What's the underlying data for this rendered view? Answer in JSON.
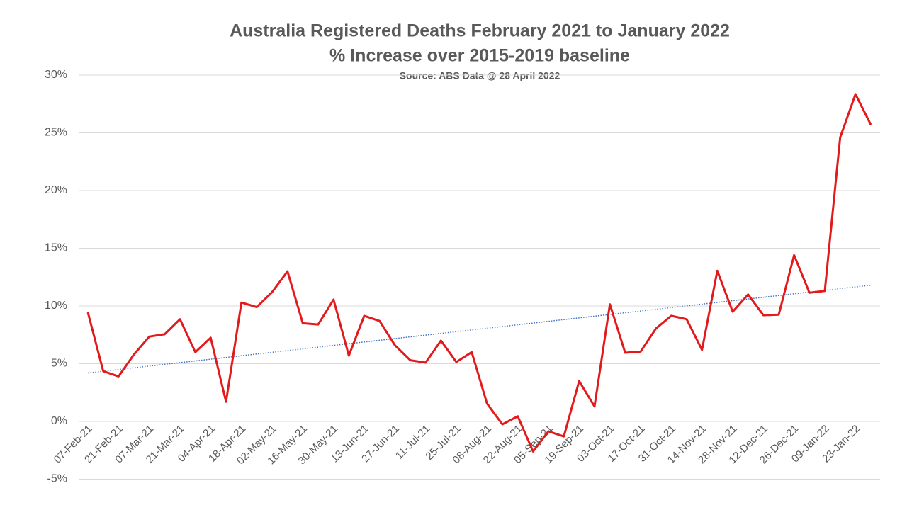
{
  "chart_data": {
    "type": "line",
    "title": "Australia Registered Deaths February 2021 to January 2022",
    "subtitle": "% Increase over 2015-2019 baseline",
    "source": "Source: ABS Data @ 28 April 2022",
    "categories": [
      "07-Feb-21",
      null,
      "21-Feb-21",
      null,
      "07-Mar-21",
      null,
      "21-Mar-21",
      null,
      "04-Apr-21",
      null,
      "18-Apr-21",
      null,
      "02-May-21",
      null,
      "16-May-21",
      null,
      "30-May-21",
      null,
      "13-Jun-21",
      null,
      "27-Jun-21",
      null,
      "11-Jul-21",
      null,
      "25-Jul-21",
      null,
      "08-Aug-21",
      null,
      "22-Aug-21",
      null,
      "05-Sep-21",
      null,
      "19-Sep-21",
      null,
      "03-Oct-21",
      null,
      "17-Oct-21",
      null,
      "31-Oct-21",
      null,
      "14-Nov-21",
      null,
      "28-Nov-21",
      null,
      "12-Dec-21",
      null,
      "26-Dec-21",
      null,
      "09-Jan-22",
      null,
      "23-Jan-22",
      null
    ],
    "series": [
      {
        "color": "#e31a1c",
        "values": [
          9.45,
          4.35,
          3.9,
          5.8,
          7.35,
          7.55,
          8.85,
          6.0,
          7.25,
          1.7,
          10.3,
          9.9,
          11.2,
          13.0,
          8.5,
          8.4,
          10.55,
          5.7,
          9.15,
          8.7,
          6.6,
          5.3,
          5.1,
          7.0,
          5.15,
          6.0,
          1.55,
          -0.25,
          0.45,
          -2.6,
          -0.85,
          -1.3,
          3.5,
          1.3,
          10.15,
          5.95,
          6.05,
          8.05,
          9.15,
          8.85,
          6.2,
          13.05,
          9.5,
          11.0,
          9.2,
          9.25,
          14.4,
          11.15,
          11.3,
          24.6,
          28.35,
          25.7
        ]
      }
    ],
    "trendline": {
      "color": "#4472c4",
      "values": [
        4.2,
        11.8
      ]
    },
    "ylim": [
      -5,
      30
    ],
    "yticks": [
      {
        "value": -5,
        "label": "-5%"
      },
      {
        "value": 0,
        "label": "0%"
      },
      {
        "value": 5,
        "label": "5%"
      },
      {
        "value": 10,
        "label": "10%"
      },
      {
        "value": 15,
        "label": "15%"
      },
      {
        "value": 20,
        "label": "20%"
      },
      {
        "value": 25,
        "label": "25%"
      },
      {
        "value": 30,
        "label": "30%"
      }
    ],
    "grid": true
  }
}
